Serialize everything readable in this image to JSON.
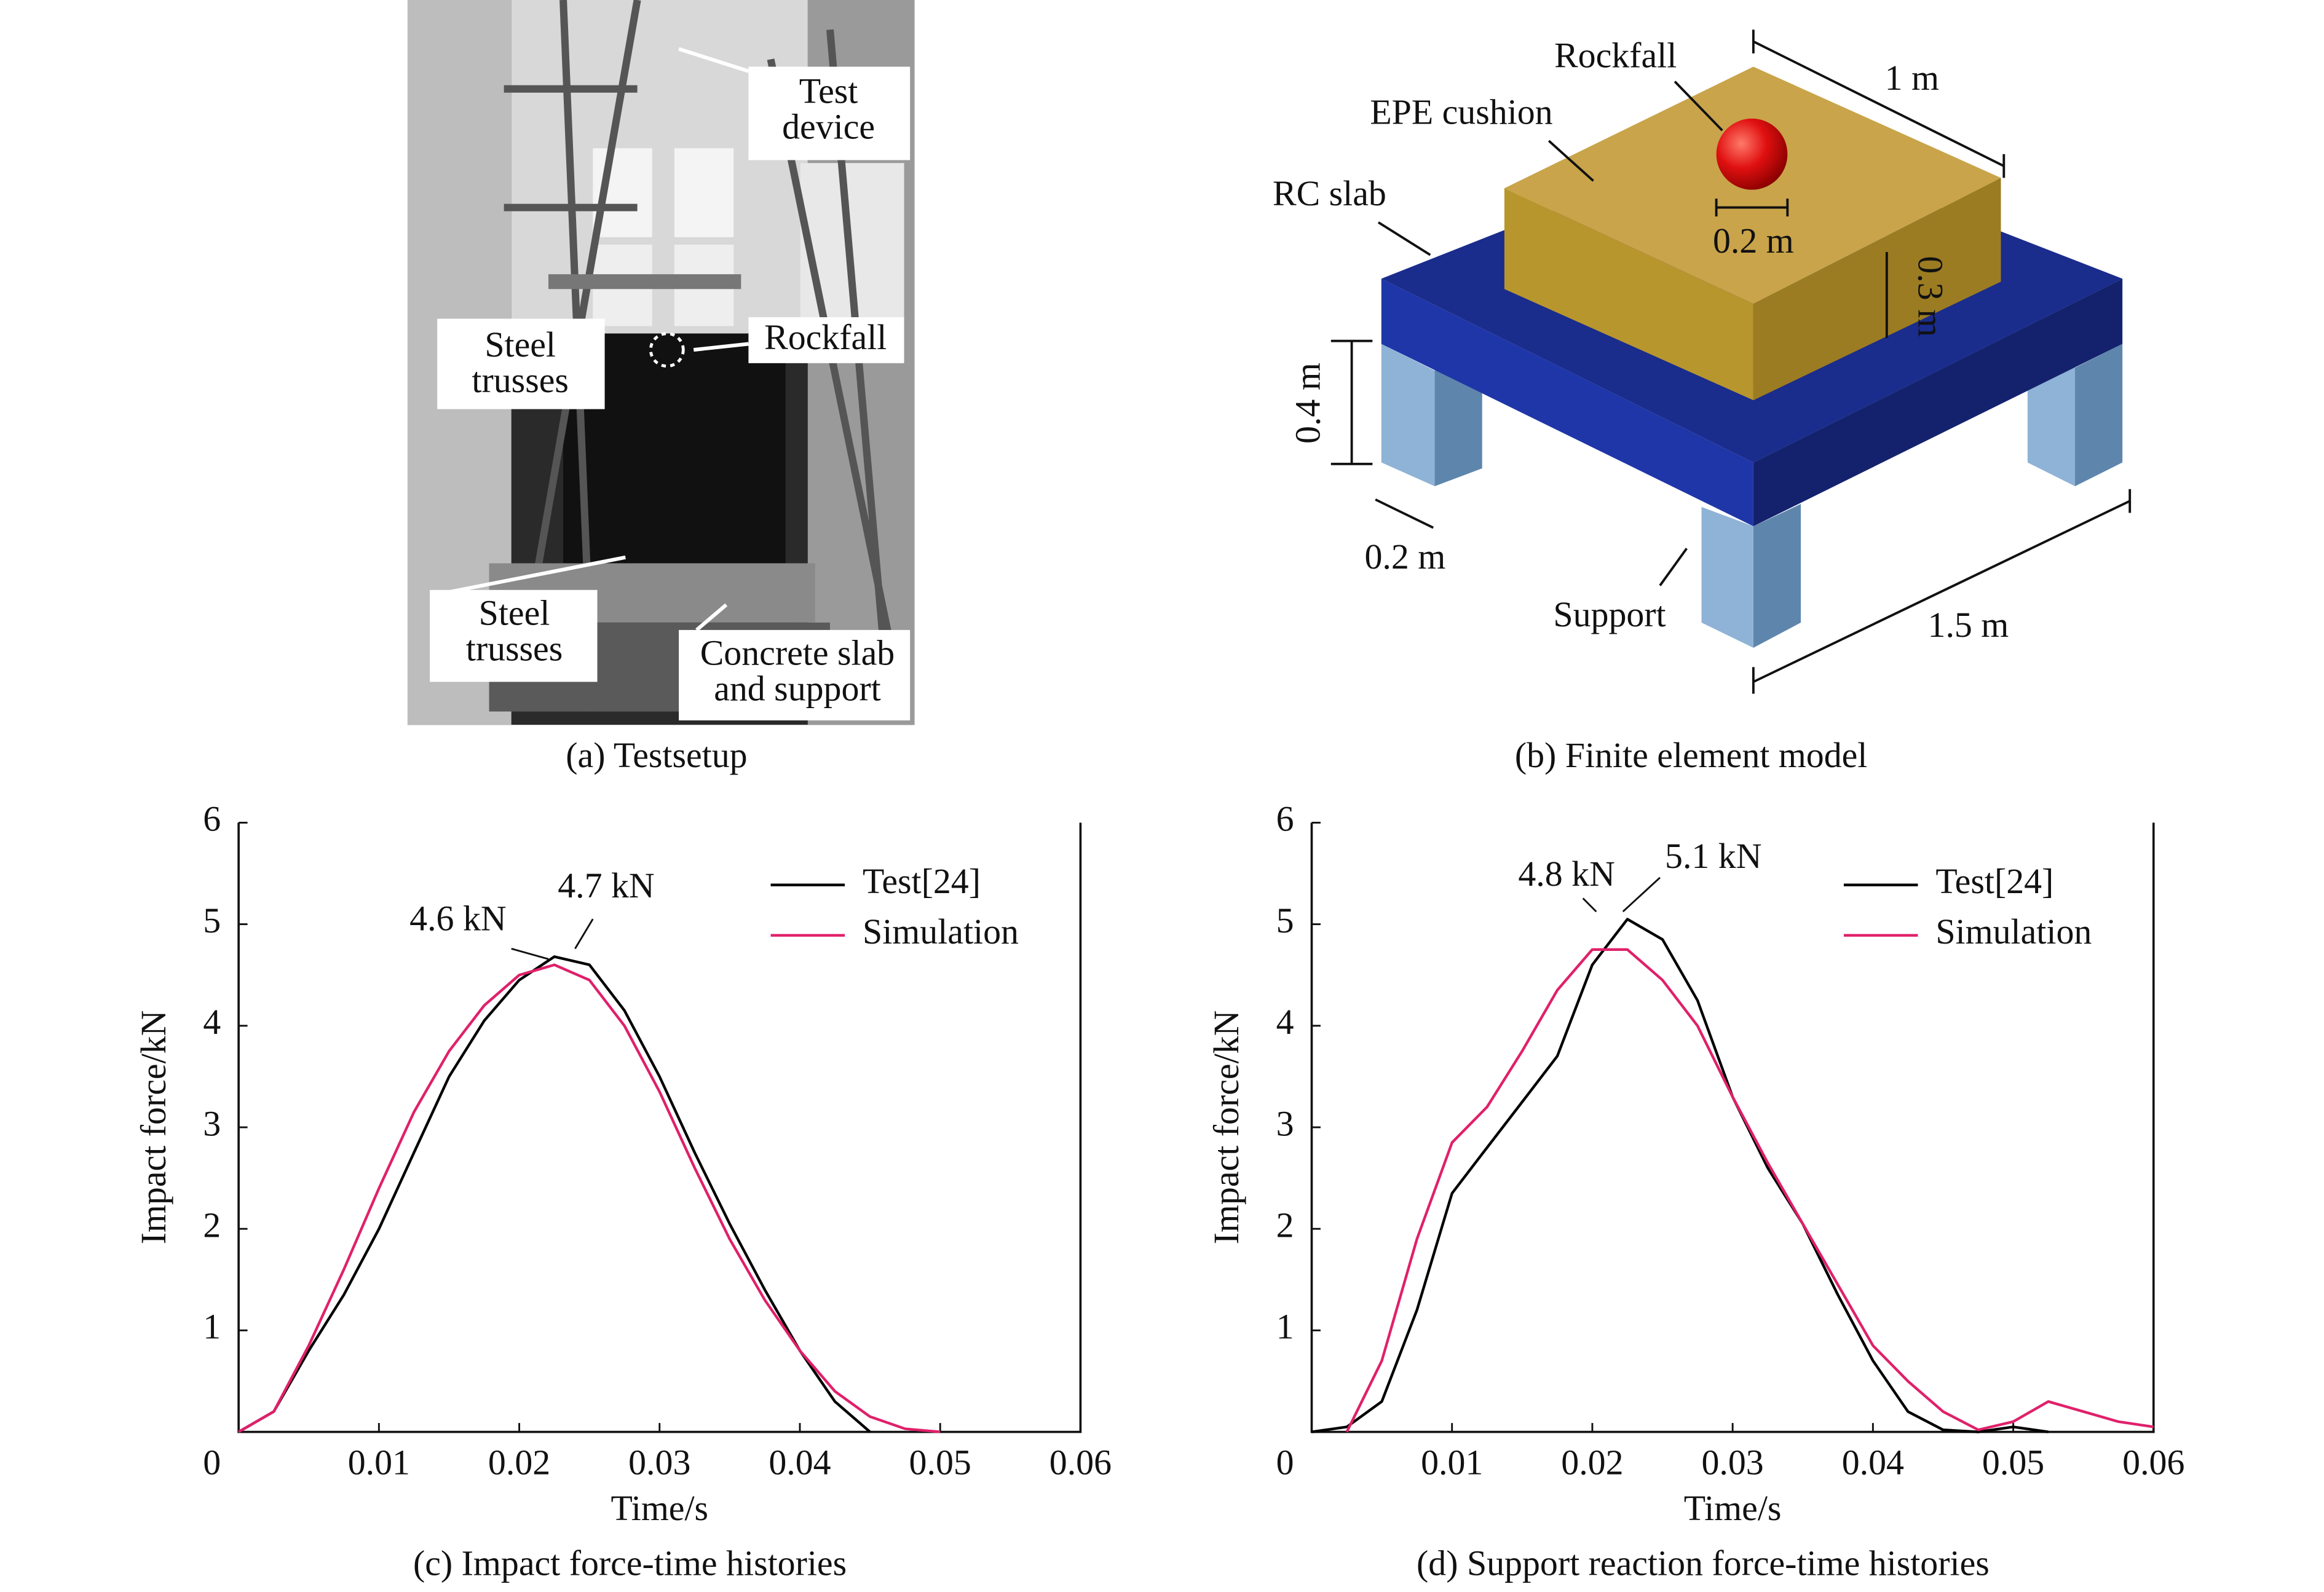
{
  "panels": {
    "a": {
      "caption": "(a) Testsetup",
      "labels": [
        [
          "Test",
          "device"
        ],
        [
          "Steel",
          "trusses"
        ],
        [
          "Rockfall"
        ],
        [
          "Steel",
          "trusses"
        ],
        [
          "Concrete slab",
          "and support"
        ]
      ]
    },
    "b": {
      "caption": "(b) Finite element model",
      "labels": [
        "Rockfall",
        "EPE cushion",
        "RC slab",
        "1 m",
        "0.2 m",
        "0.3 m",
        "0.4 m",
        "0.2 m",
        "Support",
        "1.5 m"
      ]
    }
  },
  "chart_data": [
    {
      "type": "line",
      "title": "(c) Impact force-time histories",
      "x_label": "Time/s",
      "y_label": "Impact force/kN",
      "x": [
        0,
        0.0025,
        0.005,
        0.0075,
        0.01,
        0.0125,
        0.015,
        0.0175,
        0.02,
        0.0225,
        0.025,
        0.0275,
        0.03,
        0.0325,
        0.035,
        0.0375,
        0.04,
        0.0425,
        0.045,
        0.0475,
        0.05
      ],
      "series": [
        {
          "name": "Test[24]",
          "color": "#000000",
          "values": [
            0,
            0.2,
            0.8,
            1.35,
            2.0,
            2.75,
            3.5,
            4.05,
            4.45,
            4.68,
            4.6,
            4.15,
            3.5,
            2.75,
            2.05,
            1.4,
            0.8,
            0.3,
            0,
            null,
            null
          ]
        },
        {
          "name": "Simulation",
          "color": "#e0206a",
          "values": [
            0,
            0.2,
            0.85,
            1.6,
            2.4,
            3.15,
            3.75,
            4.2,
            4.5,
            4.6,
            4.45,
            4.0,
            3.35,
            2.6,
            1.9,
            1.3,
            0.8,
            0.4,
            0.15,
            0.03,
            0
          ]
        }
      ],
      "annotations": [
        "4.6 kN",
        "4.7 kN"
      ],
      "legend": "upper right",
      "xlim": [
        0,
        0.06
      ],
      "xticks": [
        0,
        0.01,
        0.02,
        0.03,
        0.04,
        0.05,
        0.06
      ],
      "ylim": [
        0,
        6
      ],
      "yticks": [
        1,
        2,
        3,
        4,
        5,
        6
      ]
    },
    {
      "type": "line",
      "title": "(d) Support reaction force-time histories",
      "x_label": "Time/s",
      "y_label": "Impact force/kN",
      "x": [
        0,
        0.0025,
        0.005,
        0.0075,
        0.01,
        0.0125,
        0.015,
        0.0175,
        0.02,
        0.0225,
        0.025,
        0.0275,
        0.03,
        0.0325,
        0.035,
        0.0375,
        0.04,
        0.0425,
        0.045,
        0.0475,
        0.05,
        0.0525,
        0.055,
        0.0575,
        0.06
      ],
      "series": [
        {
          "name": "Test[24]",
          "color": "#000000",
          "values": [
            0,
            0.05,
            0.3,
            1.2,
            2.35,
            2.8,
            3.25,
            3.7,
            4.6,
            5.05,
            4.85,
            4.25,
            3.3,
            2.6,
            2.05,
            1.35,
            0.7,
            0.2,
            0.02,
            0,
            0.05,
            0,
            null,
            null,
            null
          ]
        },
        {
          "name": "Simulation",
          "color": "#e0206a",
          "values": [
            null,
            0,
            0.7,
            1.9,
            2.85,
            3.2,
            3.75,
            4.35,
            4.75,
            4.75,
            4.45,
            4.0,
            3.3,
            2.65,
            2.05,
            1.45,
            0.85,
            0.5,
            0.2,
            0.02,
            0.1,
            0.3,
            0.2,
            0.1,
            0.05
          ]
        }
      ],
      "annotations": [
        "4.8 kN",
        "5.1 kN"
      ],
      "legend": "upper right",
      "xlim": [
        0,
        0.06
      ],
      "xticks": [
        0,
        0.01,
        0.02,
        0.03,
        0.04,
        0.05,
        0.06
      ],
      "ylim": [
        0,
        6
      ],
      "yticks": [
        1,
        2,
        3,
        4,
        5,
        6
      ]
    }
  ]
}
